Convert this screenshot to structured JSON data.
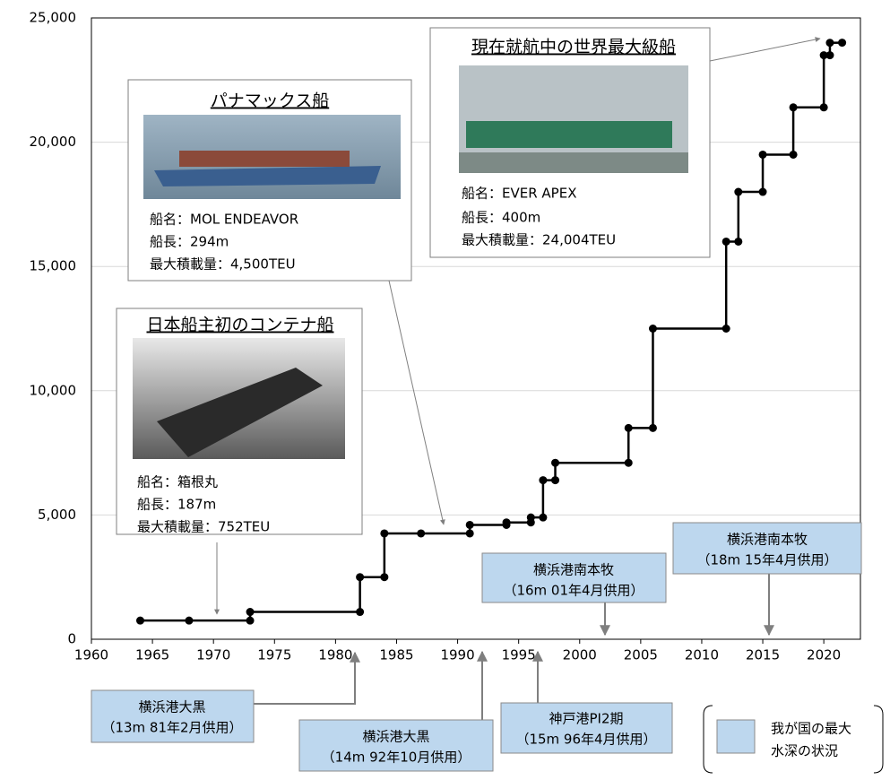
{
  "chart_data": {
    "type": "line",
    "color": "#000000",
    "grid": true,
    "x": [
      1964,
      1968,
      1973,
      1973,
      1982,
      1982,
      1984,
      1984,
      1987,
      1991,
      1991,
      1994,
      1994,
      1996,
      1996,
      1997,
      1997,
      1998,
      1998,
      2004,
      2004,
      2006,
      2006,
      2012,
      2012,
      2013,
      2013,
      2015,
      2015,
      2017.5,
      2017.5,
      2020,
      2020,
      2020.5,
      2020.5,
      2021.5
    ],
    "values": [
      752,
      752,
      752,
      1100,
      1100,
      2500,
      2500,
      4258,
      4258,
      4258,
      4600,
      4600,
      4700,
      4700,
      4900,
      4900,
      6400,
      6400,
      7100,
      7100,
      8500,
      8500,
      12500,
      12500,
      16000,
      16000,
      18000,
      18000,
      19500,
      19500,
      21400,
      21400,
      23500,
      23500,
      24000,
      24004
    ],
    "xlim": [
      1960,
      2023
    ],
    "xticks": [
      1960,
      1965,
      1970,
      1975,
      1980,
      1985,
      1990,
      1995,
      2000,
      2005,
      2010,
      2015,
      2020
    ],
    "ylim": [
      0,
      25000
    ],
    "yticks": [
      0,
      {
        "value": 5000,
        "label": "5,000"
      },
      {
        "value": 10000,
        "label": "10,000"
      },
      {
        "value": 15000,
        "label": "15,000"
      },
      {
        "value": 20000,
        "label": "20,000"
      },
      {
        "value": 25000,
        "label": "25,000"
      }
    ]
  },
  "annotations": {
    "ships": [
      {
        "title": "パナマックス船",
        "lines": [
          "船名：MOL ENDEAVOR",
          "船長：294m",
          "最大積載量：4,500TEU"
        ]
      },
      {
        "title": "日本船主初のコンテナ船",
        "lines": [
          "船名：箱根丸",
          "船長：187m",
          "最大積載量：752TEU"
        ]
      },
      {
        "title": "現在就航中の世界最大級船",
        "lines": [
          "船名：EVER APEX",
          "船長：400m",
          "最大積載量：24,004TEU"
        ]
      }
    ],
    "depths": [
      {
        "lines": [
          "横浜港大黒",
          "（13m 81年2月供用）"
        ]
      },
      {
        "lines": [
          "横浜港大黒",
          "（14m 92年10月供用）"
        ]
      },
      {
        "lines": [
          "神戸港PI2期",
          "（15m 96年4月供用）"
        ]
      },
      {
        "lines": [
          "横浜港南本牧",
          "（16m 01年4月供用）"
        ]
      },
      {
        "lines": [
          "横浜港南本牧",
          "（18m 15年4月供用）"
        ]
      }
    ]
  },
  "legend": {
    "lines": [
      "我が国の最大",
      "水深の状況"
    ]
  }
}
